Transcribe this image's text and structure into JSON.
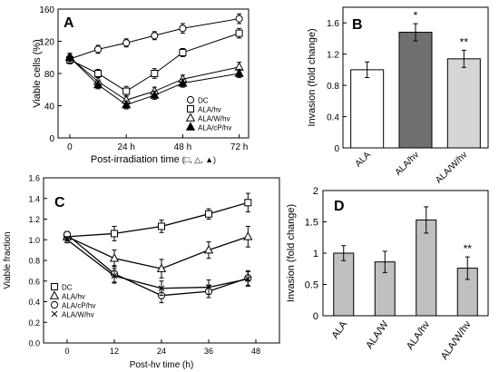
{
  "chart_data": [
    {
      "type": "line",
      "panel_label": "A",
      "xlabel": "Post-irradiation time",
      "xlabel_symbols": "(□, △, ▲)",
      "ylabel": "Viable cells (%)",
      "x_ticks": [
        "0",
        "24 h",
        "48 h",
        "72 h"
      ],
      "xlim": [
        -5,
        76
      ],
      "ylim": [
        0,
        160
      ],
      "y_ticks": [
        "0",
        "40",
        "80",
        "120",
        "160"
      ],
      "series": [
        {
          "name": "DC",
          "marker": "circle-open",
          "x": [
            0,
            12,
            24,
            36,
            48,
            72
          ],
          "values": [
            98,
            110,
            118,
            127,
            136,
            148
          ],
          "err": [
            5,
            5,
            5,
            5,
            6,
            6
          ]
        },
        {
          "name": "ALA/hv",
          "marker": "square-open",
          "x": [
            0,
            12,
            24,
            36,
            48,
            72
          ],
          "values": [
            97,
            80,
            58,
            80,
            106,
            130
          ],
          "err": [
            5,
            5,
            6,
            6,
            5,
            6
          ]
        },
        {
          "name": "ALA/W/hv",
          "marker": "triangle-open",
          "x": [
            0,
            12,
            24,
            36,
            48,
            72
          ],
          "values": [
            100,
            70,
            47,
            58,
            73,
            88
          ],
          "err": [
            5,
            5,
            5,
            5,
            5,
            6
          ]
        },
        {
          "name": "ALA/cP/hv",
          "marker": "triangle-filled",
          "x": [
            0,
            12,
            24,
            36,
            48,
            72
          ],
          "values": [
            100,
            66,
            41,
            53,
            68,
            80
          ],
          "err": [
            5,
            5,
            5,
            5,
            5,
            5
          ]
        }
      ]
    },
    {
      "type": "bar",
      "panel_label": "B",
      "ylabel": "Invasion (fold change)",
      "categories": [
        "ALA",
        "ALA/hv",
        "ALA/W/hv"
      ],
      "values": [
        1.0,
        1.48,
        1.14
      ],
      "err": [
        0.1,
        0.11,
        0.11
      ],
      "colors": [
        "#ffffff",
        "#707070",
        "#d6d6d6"
      ],
      "annotations": [
        "",
        "*",
        "**"
      ],
      "ylim": [
        0,
        1.8
      ],
      "y_ticks": [
        "0",
        "0.4",
        "0.8",
        "1.2",
        "1.6"
      ]
    },
    {
      "type": "line",
      "panel_label": "C",
      "xlabel": "Post-hv time (h)",
      "ylabel": "Viable fraction",
      "xlim": [
        -6,
        54
      ],
      "x_ticks": [
        "0",
        "12",
        "24",
        "36",
        "48"
      ],
      "ylim": [
        0,
        1.6
      ],
      "y_ticks": [
        "0.0",
        "0.2",
        "0.4",
        "0.6",
        "0.8",
        "1.0",
        "1.2",
        "1.4",
        "1.6"
      ],
      "series": [
        {
          "name": "DC",
          "marker": "square-open",
          "x": [
            0,
            12,
            24,
            36,
            46
          ],
          "values": [
            1.03,
            1.06,
            1.13,
            1.25,
            1.36
          ],
          "err": [
            0.03,
            0.07,
            0.06,
            0.05,
            0.09
          ]
        },
        {
          "name": "ALA/hv",
          "marker": "triangle-open",
          "x": [
            0,
            12,
            24,
            36,
            46
          ],
          "values": [
            1.03,
            0.82,
            0.72,
            0.9,
            1.03
          ],
          "err": [
            0.03,
            0.08,
            0.09,
            0.08,
            0.1
          ]
        },
        {
          "name": "ALA/cP/hv",
          "marker": "circle-open",
          "x": [
            0,
            12,
            24,
            36,
            46
          ],
          "values": [
            1.05,
            0.67,
            0.46,
            0.5,
            0.63
          ],
          "err": [
            0.03,
            0.08,
            0.07,
            0.06,
            0.07
          ]
        },
        {
          "name": "ALA/W/hv",
          "marker": "x",
          "x": [
            0,
            12,
            24,
            36,
            46
          ],
          "values": [
            1.0,
            0.65,
            0.53,
            0.54,
            0.62
          ],
          "err": [
            0.03,
            0.07,
            0.07,
            0.07,
            0.07
          ]
        }
      ]
    },
    {
      "type": "bar",
      "panel_label": "D",
      "ylabel": "Invasion (fold change)",
      "categories": [
        "ALA",
        "ALA/W",
        "ALA/hv",
        "ALA/W/hv"
      ],
      "values": [
        1.0,
        0.86,
        1.53,
        0.76
      ],
      "err": [
        0.12,
        0.17,
        0.21,
        0.18
      ],
      "colors": [
        "#c0c0c0",
        "#c0c0c0",
        "#c0c0c0",
        "#c0c0c0"
      ],
      "annotations": [
        "",
        "",
        "",
        "**"
      ],
      "ylim": [
        0,
        2
      ],
      "y_ticks": [
        "0",
        "0.5",
        "1",
        "1.5",
        "2"
      ]
    }
  ]
}
